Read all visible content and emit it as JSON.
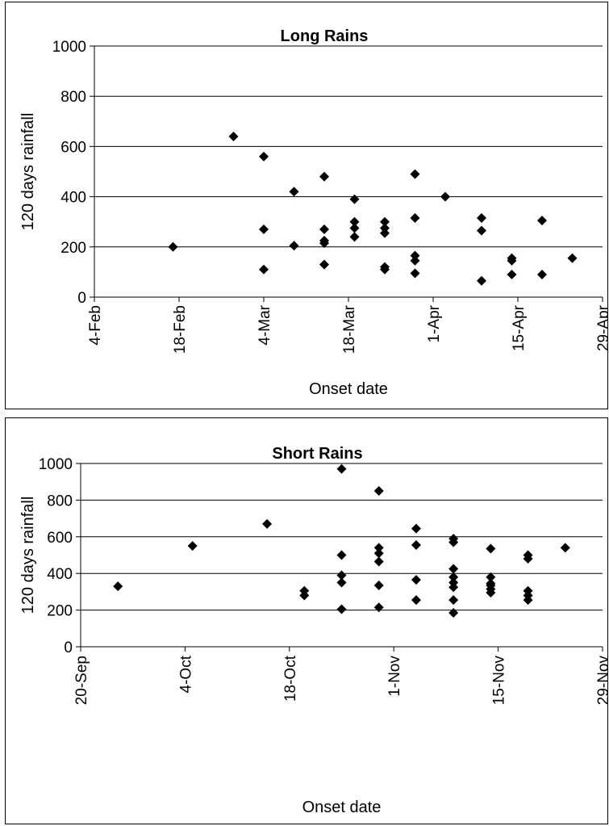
{
  "charts": [
    {
      "title": "Long Rains",
      "xlabel": "Onset date",
      "ylabel": "120 days rainfall"
    },
    {
      "title": "Short Rains",
      "xlabel": "Onset date",
      "ylabel": "120 days rainfall"
    }
  ],
  "chart_data": [
    {
      "type": "scatter",
      "title": "Long Rains",
      "xlabel": "Onset date",
      "ylabel": "120 days rainfall",
      "x_tick_labels": [
        "4-Feb",
        "18-Feb",
        "4-Mar",
        "18-Mar",
        "1-Apr",
        "15-Apr",
        "29-Apr"
      ],
      "y_tick_labels": [
        "0",
        "200",
        "400",
        "600",
        "800",
        "1000"
      ],
      "xlim": [
        "4-Feb",
        "29-Apr"
      ],
      "ylim": [
        0,
        1000
      ],
      "grid": "horizontal",
      "marker": "diamond",
      "color": "#000000",
      "points": [
        {
          "x": "17-Feb",
          "y": 200
        },
        {
          "x": "27-Feb",
          "y": 640
        },
        {
          "x": "4-Mar",
          "y": 560
        },
        {
          "x": "4-Mar",
          "y": 270
        },
        {
          "x": "4-Mar",
          "y": 110
        },
        {
          "x": "9-Mar",
          "y": 420
        },
        {
          "x": "9-Mar",
          "y": 205
        },
        {
          "x": "14-Mar",
          "y": 480
        },
        {
          "x": "14-Mar",
          "y": 270
        },
        {
          "x": "14-Mar",
          "y": 225
        },
        {
          "x": "14-Mar",
          "y": 215
        },
        {
          "x": "14-Mar",
          "y": 130
        },
        {
          "x": "19-Mar",
          "y": 390
        },
        {
          "x": "19-Mar",
          "y": 300
        },
        {
          "x": "19-Mar",
          "y": 275
        },
        {
          "x": "19-Mar",
          "y": 240
        },
        {
          "x": "24-Mar",
          "y": 300
        },
        {
          "x": "24-Mar",
          "y": 275
        },
        {
          "x": "24-Mar",
          "y": 255
        },
        {
          "x": "24-Mar",
          "y": 120
        },
        {
          "x": "24-Mar",
          "y": 110
        },
        {
          "x": "29-Mar",
          "y": 490
        },
        {
          "x": "29-Mar",
          "y": 315
        },
        {
          "x": "29-Mar",
          "y": 165
        },
        {
          "x": "29-Mar",
          "y": 145
        },
        {
          "x": "29-Mar",
          "y": 95
        },
        {
          "x": "3-Apr",
          "y": 400
        },
        {
          "x": "9-Apr",
          "y": 315
        },
        {
          "x": "9-Apr",
          "y": 265
        },
        {
          "x": "9-Apr",
          "y": 65
        },
        {
          "x": "14-Apr",
          "y": 155
        },
        {
          "x": "14-Apr",
          "y": 145
        },
        {
          "x": "14-Apr",
          "y": 90
        },
        {
          "x": "19-Apr",
          "y": 305
        },
        {
          "x": "19-Apr",
          "y": 90
        },
        {
          "x": "24-Apr",
          "y": 155
        }
      ]
    },
    {
      "type": "scatter",
      "title": "Short Rains",
      "xlabel": "Onset date",
      "ylabel": "120 days rainfall",
      "x_tick_labels": [
        "20-Sep",
        "4-Oct",
        "18-Oct",
        "1-Nov",
        "15-Nov",
        "29-Nov"
      ],
      "y_tick_labels": [
        "0",
        "200",
        "400",
        "600",
        "800",
        "1000"
      ],
      "xlim": [
        "20-Sep",
        "29-Nov"
      ],
      "ylim": [
        0,
        1000
      ],
      "grid": "horizontal",
      "marker": "diamond",
      "color": "#000000",
      "points": [
        {
          "x": "25-Sep",
          "y": 330
        },
        {
          "x": "5-Oct",
          "y": 550
        },
        {
          "x": "15-Oct",
          "y": 670
        },
        {
          "x": "20-Oct",
          "y": 305
        },
        {
          "x": "20-Oct",
          "y": 280
        },
        {
          "x": "25-Oct",
          "y": 970
        },
        {
          "x": "25-Oct",
          "y": 500
        },
        {
          "x": "25-Oct",
          "y": 390
        },
        {
          "x": "25-Oct",
          "y": 350
        },
        {
          "x": "25-Oct",
          "y": 205
        },
        {
          "x": "30-Oct",
          "y": 850
        },
        {
          "x": "30-Oct",
          "y": 540
        },
        {
          "x": "30-Oct",
          "y": 510
        },
        {
          "x": "30-Oct",
          "y": 465
        },
        {
          "x": "30-Oct",
          "y": 335
        },
        {
          "x": "30-Oct",
          "y": 215
        },
        {
          "x": "4-Nov",
          "y": 645
        },
        {
          "x": "4-Nov",
          "y": 555
        },
        {
          "x": "4-Nov",
          "y": 365
        },
        {
          "x": "4-Nov",
          "y": 255
        },
        {
          "x": "9-Nov",
          "y": 590
        },
        {
          "x": "9-Nov",
          "y": 570
        },
        {
          "x": "9-Nov",
          "y": 425
        },
        {
          "x": "9-Nov",
          "y": 380
        },
        {
          "x": "9-Nov",
          "y": 350
        },
        {
          "x": "9-Nov",
          "y": 325
        },
        {
          "x": "9-Nov",
          "y": 255
        },
        {
          "x": "9-Nov",
          "y": 185
        },
        {
          "x": "14-Nov",
          "y": 535
        },
        {
          "x": "14-Nov",
          "y": 380
        },
        {
          "x": "14-Nov",
          "y": 345
        },
        {
          "x": "14-Nov",
          "y": 335
        },
        {
          "x": "14-Nov",
          "y": 315
        },
        {
          "x": "14-Nov",
          "y": 295
        },
        {
          "x": "19-Nov",
          "y": 500
        },
        {
          "x": "19-Nov",
          "y": 480
        },
        {
          "x": "19-Nov",
          "y": 305
        },
        {
          "x": "19-Nov",
          "y": 280
        },
        {
          "x": "19-Nov",
          "y": 255
        },
        {
          "x": "24-Nov",
          "y": 540
        }
      ]
    }
  ]
}
